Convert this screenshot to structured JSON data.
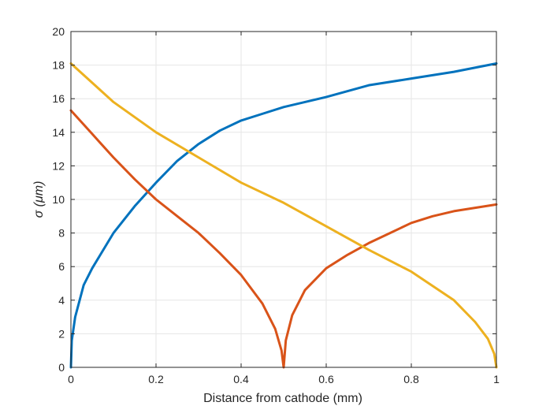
{
  "chart_data": {
    "type": "line",
    "title": "",
    "xlabel": "Distance from cathode (mm)",
    "ylabel": "σ (μm)",
    "xlim": [
      0,
      1
    ],
    "ylim": [
      0,
      20
    ],
    "x_ticks": [
      0,
      0.2,
      0.4,
      0.6,
      0.8,
      1
    ],
    "x_tick_labels": [
      "0",
      "0.2",
      "0.4",
      "0.6",
      "0.8",
      "1"
    ],
    "y_ticks": [
      0,
      2,
      4,
      6,
      8,
      10,
      12,
      14,
      16,
      18,
      20
    ],
    "y_tick_labels": [
      "0",
      "2",
      "4",
      "6",
      "8",
      "10",
      "12",
      "14",
      "16",
      "18",
      "20"
    ],
    "grid": true,
    "legend": "none",
    "series": [
      {
        "color": "#0072BD",
        "x": [
          0,
          0.002,
          0.01,
          0.03,
          0.05,
          0.1,
          0.15,
          0.2,
          0.25,
          0.3,
          0.35,
          0.4,
          0.45,
          0.5,
          0.6,
          0.7,
          0.8,
          0.9,
          1.0
        ],
        "y": [
          0,
          1.6,
          3.0,
          4.9,
          5.9,
          8.0,
          9.6,
          11.0,
          12.3,
          13.3,
          14.1,
          14.7,
          15.1,
          15.5,
          16.1,
          16.8,
          17.2,
          17.6,
          18.1
        ]
      },
      {
        "color": "#D95319",
        "x": [
          0,
          0.05,
          0.1,
          0.15,
          0.2,
          0.25,
          0.3,
          0.35,
          0.4,
          0.45,
          0.48,
          0.495,
          0.5,
          0.505,
          0.52,
          0.55,
          0.6,
          0.65,
          0.7,
          0.75,
          0.8,
          0.85,
          0.9,
          0.95,
          1.0
        ],
        "y": [
          15.3,
          13.9,
          12.5,
          11.2,
          10.0,
          9.0,
          8.0,
          6.8,
          5.5,
          3.8,
          2.3,
          1.0,
          0,
          1.6,
          3.1,
          4.6,
          5.9,
          6.7,
          7.4,
          8.0,
          8.6,
          9.0,
          9.3,
          9.5,
          9.7
        ]
      },
      {
        "color": "#EDB120",
        "x": [
          0,
          0.1,
          0.2,
          0.3,
          0.4,
          0.5,
          0.6,
          0.7,
          0.8,
          0.9,
          0.95,
          0.98,
          0.995,
          1.0
        ],
        "y": [
          18.1,
          15.8,
          14.0,
          12.5,
          11.0,
          9.8,
          8.4,
          7.0,
          5.7,
          4.0,
          2.7,
          1.7,
          0.8,
          0
        ]
      }
    ]
  }
}
